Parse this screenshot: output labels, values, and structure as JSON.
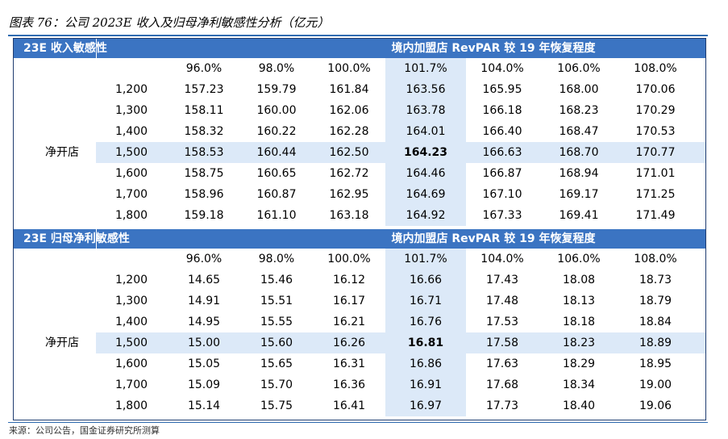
{
  "figure": {
    "title": "图表 76：公司 2023E 收入及归母净利敏感性分析（亿元）",
    "source": "来源：公司公告，国金证券研究所测算"
  },
  "tables": [
    {
      "section_label": "23E 收入敏感性",
      "column_group_label": "境内加盟店 RevPAR 较 19 年恢复程度",
      "row_group_label": "净开店",
      "column_headers": [
        "96.0%",
        "98.0%",
        "100.0%",
        "101.7%",
        "104.0%",
        "106.0%",
        "108.0%"
      ],
      "row_headers": [
        "1,200",
        "1,300",
        "1,400",
        "1,500",
        "1,600",
        "1,700",
        "1,800"
      ],
      "rows": [
        [
          "157.23",
          "159.79",
          "161.84",
          "163.56",
          "165.95",
          "168.00",
          "170.06"
        ],
        [
          "158.11",
          "160.00",
          "162.06",
          "163.78",
          "166.18",
          "168.23",
          "170.29"
        ],
        [
          "158.32",
          "160.22",
          "162.28",
          "164.01",
          "166.40",
          "168.47",
          "170.53"
        ],
        [
          "158.53",
          "160.44",
          "162.50",
          "164.23",
          "166.63",
          "168.70",
          "170.77"
        ],
        [
          "158.75",
          "160.65",
          "162.72",
          "164.46",
          "166.87",
          "168.94",
          "171.01"
        ],
        [
          "158.96",
          "160.87",
          "162.95",
          "164.69",
          "167.10",
          "169.17",
          "171.25"
        ],
        [
          "159.18",
          "161.10",
          "163.18",
          "164.92",
          "167.33",
          "169.41",
          "171.49"
        ]
      ],
      "highlight_row": 3,
      "highlight_col": 3
    },
    {
      "section_label": "23E 归母净利敏感性",
      "column_group_label": "境内加盟店 RevPAR 较 19 年恢复程度",
      "row_group_label": "净开店",
      "column_headers": [
        "96.0%",
        "98.0%",
        "100.0%",
        "101.7%",
        "104.0%",
        "106.0%",
        "108.0%"
      ],
      "row_headers": [
        "1,200",
        "1,300",
        "1,400",
        "1,500",
        "1,600",
        "1,700",
        "1,800"
      ],
      "rows": [
        [
          "14.65",
          "15.46",
          "16.12",
          "16.66",
          "17.43",
          "18.08",
          "18.73"
        ],
        [
          "14.91",
          "15.51",
          "16.17",
          "16.71",
          "17.48",
          "18.13",
          "18.79"
        ],
        [
          "14.95",
          "15.55",
          "16.21",
          "16.76",
          "17.53",
          "18.18",
          "18.84"
        ],
        [
          "15.00",
          "15.60",
          "16.26",
          "16.81",
          "17.58",
          "18.23",
          "18.89"
        ],
        [
          "15.05",
          "15.65",
          "16.31",
          "16.86",
          "17.63",
          "18.29",
          "18.95"
        ],
        [
          "15.09",
          "15.70",
          "16.36",
          "16.91",
          "17.68",
          "18.34",
          "19.00"
        ],
        [
          "15.14",
          "15.75",
          "16.41",
          "16.97",
          "17.73",
          "18.40",
          "19.06"
        ]
      ],
      "highlight_row": 3,
      "highlight_col": 3
    }
  ]
}
